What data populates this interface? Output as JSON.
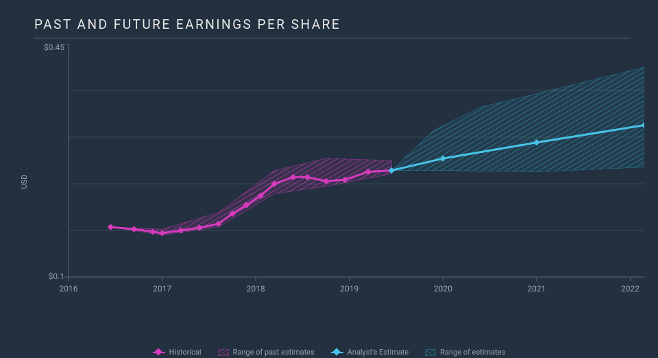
{
  "chart": {
    "title": "PAST AND FUTURE EARNINGS PER SHARE",
    "type": "line-with-range",
    "background_color": "#22303f",
    "grid_color": "#3a4a59",
    "title_color": "#e8e8e8",
    "tick_color": "#9aa3ac",
    "title_fontsize": 19,
    "title_letter_spacing": 2.5,
    "tick_fontsize": 12,
    "y_axis": {
      "label": "USD",
      "min": 0.1,
      "max": 0.45,
      "top_tick_label": "$0.45",
      "bottom_tick_label": "$0.1",
      "grid_values": [
        0.17,
        0.24,
        0.31,
        0.38
      ]
    },
    "x_axis": {
      "min": 2016,
      "max": 2022.15,
      "ticks": [
        2016,
        2017,
        2018,
        2019,
        2020,
        2021,
        2022
      ],
      "tick_labels": [
        "2016",
        "2017",
        "2018",
        "2019",
        "2020",
        "2021",
        "2022"
      ]
    },
    "series": {
      "historical": {
        "label": "Historical",
        "color": "#d63bbd",
        "line_width": 3,
        "marker": "diamond",
        "marker_size": 8,
        "points": [
          [
            2016.45,
            0.175
          ],
          [
            2016.7,
            0.172
          ],
          [
            2016.9,
            0.168
          ],
          [
            2017.0,
            0.166
          ],
          [
            2017.2,
            0.17
          ],
          [
            2017.4,
            0.174
          ],
          [
            2017.6,
            0.18
          ],
          [
            2017.75,
            0.195
          ],
          [
            2017.9,
            0.208
          ],
          [
            2018.05,
            0.222
          ],
          [
            2018.2,
            0.24
          ],
          [
            2018.4,
            0.25
          ],
          [
            2018.55,
            0.25
          ],
          [
            2018.75,
            0.244
          ],
          [
            2018.95,
            0.246
          ],
          [
            2019.2,
            0.258
          ],
          [
            2019.45,
            0.26
          ]
        ]
      },
      "estimate": {
        "label": "Analyst's Estimate",
        "color": "#48c3e8",
        "line_width": 3,
        "marker": "diamond",
        "marker_size": 8,
        "points": [
          [
            2019.45,
            0.26
          ],
          [
            2020.0,
            0.278
          ],
          [
            2021.0,
            0.302
          ],
          [
            2022.15,
            0.328
          ]
        ]
      },
      "past_range": {
        "label": "Range of past estimates",
        "fill_color": "#d63bbd",
        "fill_opacity": 0.55,
        "hatch": true,
        "upper": [
          [
            2016.45,
            0.175
          ],
          [
            2017.0,
            0.172
          ],
          [
            2017.6,
            0.197
          ],
          [
            2018.2,
            0.26
          ],
          [
            2018.75,
            0.278
          ],
          [
            2019.45,
            0.275
          ]
        ],
        "lower": [
          [
            2016.45,
            0.175
          ],
          [
            2017.0,
            0.163
          ],
          [
            2017.6,
            0.175
          ],
          [
            2018.2,
            0.225
          ],
          [
            2018.75,
            0.236
          ],
          [
            2019.45,
            0.255
          ]
        ]
      },
      "future_range": {
        "label": "Range of estimates",
        "fill_color": "#2a9ab8",
        "fill_opacity": 0.55,
        "hatch": true,
        "upper": [
          [
            2019.45,
            0.26
          ],
          [
            2019.9,
            0.32
          ],
          [
            2020.4,
            0.355
          ],
          [
            2021.2,
            0.382
          ],
          [
            2022.15,
            0.415
          ]
        ],
        "lower": [
          [
            2019.45,
            0.26
          ],
          [
            2020.0,
            0.26
          ],
          [
            2021.0,
            0.258
          ],
          [
            2022.15,
            0.265
          ]
        ]
      }
    },
    "legend": [
      {
        "kind": "line",
        "key": "historical"
      },
      {
        "kind": "hatch",
        "key": "past_range"
      },
      {
        "kind": "line",
        "key": "estimate"
      },
      {
        "kind": "hatch",
        "key": "future_range"
      }
    ]
  }
}
